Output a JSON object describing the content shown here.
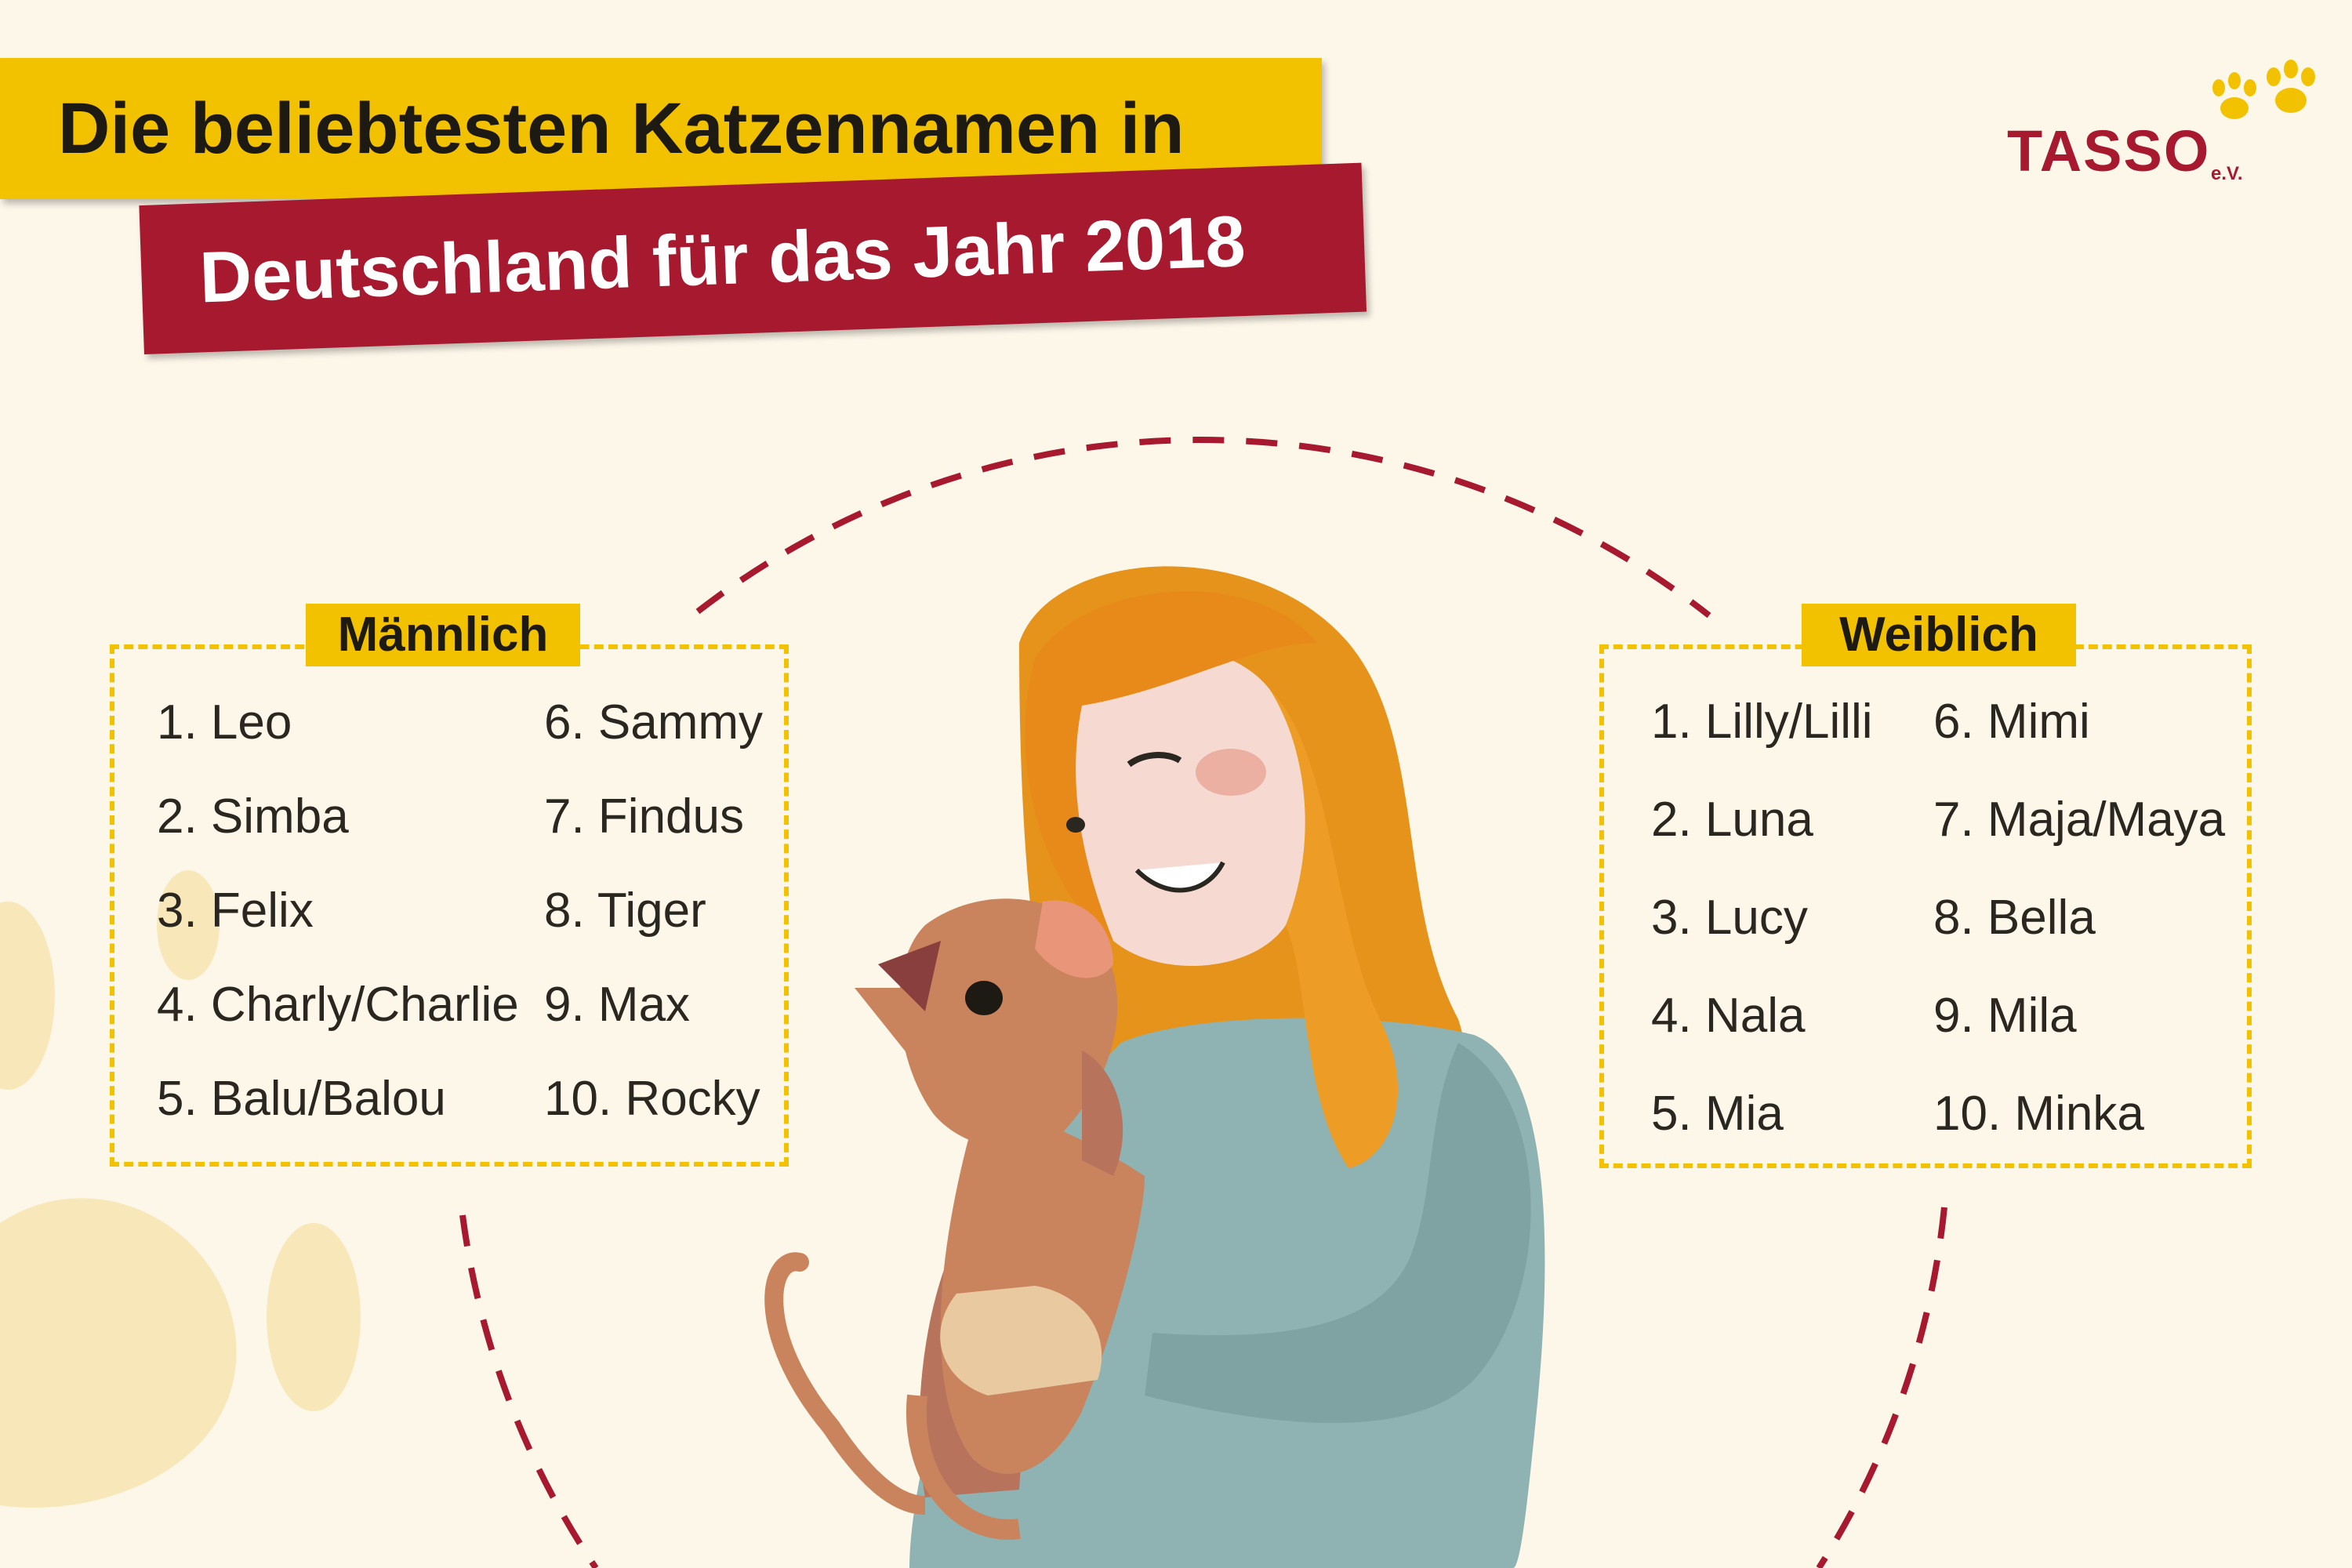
{
  "title": {
    "line1": "Die beliebtesten Katzennamen in",
    "line2": "Deutschland für das Jahr 2018"
  },
  "logo": {
    "text": "TASSO",
    "suffix": "e.V.",
    "icon": "paw-print-icon"
  },
  "colors": {
    "background": "#fdf7ea",
    "yellow": "#f2c200",
    "red": "#a6192e"
  },
  "male": {
    "label": "Männlich",
    "names": [
      "1. Leo",
      "2. Simba",
      "3. Felix",
      "4. Charly/Charlie",
      "5. Balu/Balou",
      "6. Sammy",
      "7. Findus",
      "8. Tiger",
      "9. Max",
      "10. Rocky"
    ]
  },
  "female": {
    "label": "Weiblich",
    "names": [
      "1. Lilly/Lilli",
      "2. Luna",
      "3. Lucy",
      "4. Nala",
      "5. Mia",
      "6. Mimi",
      "7. Maja/Maya",
      "8. Bella",
      "9. Mila",
      "10. Minka"
    ]
  },
  "illustration": "woman-holding-cat-illustration"
}
